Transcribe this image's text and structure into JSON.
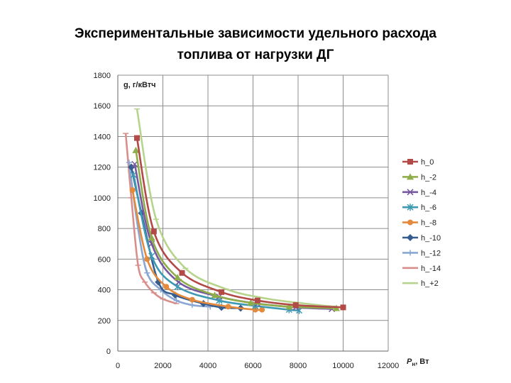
{
  "title_line1": "Экспериментальные зависимости удельного расхода",
  "title_line2": "топлива от нагрузки ДГ",
  "chart_data": {
    "type": "line",
    "title": "Экспериментальные зависимости удельного расхода топлива от нагрузки ДГ",
    "ylabel": "g, г/кВтч",
    "xlabel_main": "P",
    "xlabel_sub": "н",
    "xlabel_unit": ", Вт",
    "xlim": [
      0,
      12000
    ],
    "ylim": [
      0,
      1800
    ],
    "xticks": [
      0,
      2000,
      4000,
      6000,
      8000,
      10000,
      12000
    ],
    "yticks": [
      0,
      200,
      400,
      600,
      800,
      1000,
      1200,
      1400,
      1600,
      1800
    ],
    "grid": true,
    "legend_position": "right",
    "series": [
      {
        "name": "h_0",
        "color": "#b24a47",
        "marker": "square",
        "x": [
          850,
          1600,
          2850,
          4600,
          6200,
          7900,
          10000
        ],
        "y": [
          1390,
          780,
          510,
          385,
          330,
          300,
          285
        ]
      },
      {
        "name": "h_-2",
        "color": "#8fae4a",
        "marker": "triangle",
        "x": [
          800,
          1500,
          2650,
          4300,
          5900,
          7600,
          9700
        ],
        "y": [
          1310,
          740,
          480,
          365,
          315,
          290,
          280
        ]
      },
      {
        "name": "h_-4",
        "color": "#7657a0",
        "marker": "x",
        "x": [
          750,
          1500,
          2700,
          4500,
          6200,
          7900,
          9500
        ],
        "y": [
          1220,
          700,
          450,
          355,
          310,
          285,
          275
        ]
      },
      {
        "name": "h_-6",
        "color": "#3e9ab3",
        "marker": "star",
        "x": [
          700,
          1500,
          2650,
          4500,
          6100,
          7600,
          8050
        ],
        "y": [
          1150,
          620,
          420,
          330,
          295,
          270,
          265
        ]
      },
      {
        "name": "h_-8",
        "color": "#e38a3c",
        "marker": "circle",
        "x": [
          650,
          1300,
          2150,
          3300,
          4900,
          6100,
          6400
        ],
        "y": [
          1050,
          600,
          420,
          335,
          290,
          270,
          270
        ]
      },
      {
        "name": "h_-10",
        "color": "#355d8f",
        "marker": "diamond",
        "x": [
          600,
          1050,
          1800,
          2550,
          3800,
          4600,
          5450
        ],
        "y": [
          1200,
          900,
          450,
          365,
          310,
          285,
          280
        ]
      },
      {
        "name": "h_-12",
        "color": "#8aa7d4",
        "marker": "plus",
        "x": [
          500,
          900,
          1300,
          1900,
          2600,
          3300,
          4100
        ],
        "y": [
          1230,
          800,
          510,
          400,
          330,
          300,
          290
        ]
      },
      {
        "name": "h_-14",
        "color": "#d88f8c",
        "marker": "dash",
        "x": [
          350,
          600,
          900,
          1200,
          1600,
          2000,
          2600
        ],
        "y": [
          1420,
          1000,
          560,
          450,
          380,
          340,
          310
        ]
      },
      {
        "name": "h_+2",
        "color": "#b7d48d",
        "marker": "dash",
        "x": [
          850,
          1700,
          3000,
          4800,
          6500,
          8300,
          10000
        ],
        "y": [
          1580,
          860,
          540,
          405,
          345,
          310,
          285
        ]
      }
    ]
  }
}
